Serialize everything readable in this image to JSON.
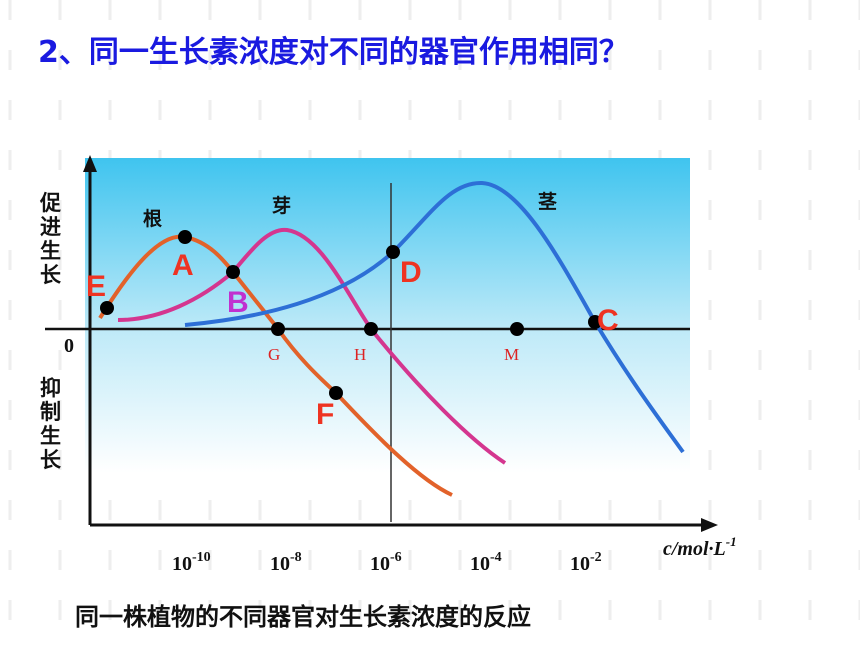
{
  "title": "2、同一生长素浓度对不同的器官作用相同？",
  "y_labels": {
    "promote": [
      "促",
      "进",
      "生",
      "长"
    ],
    "inhibit": [
      "抑",
      "制",
      "生",
      "长"
    ],
    "zero": "0"
  },
  "curve_labels": {
    "root": "根",
    "bud": "芽",
    "stem": "茎"
  },
  "points": {
    "E": "E",
    "A": "A",
    "B": "B",
    "D": "D",
    "C": "C",
    "F": "F",
    "G": "G",
    "H": "H",
    "M": "M"
  },
  "x_ticks": [
    {
      "base": "10",
      "exp": "-10"
    },
    {
      "base": "10",
      "exp": "-8"
    },
    {
      "base": "10",
      "exp": "-6"
    },
    {
      "base": "10",
      "exp": "-4"
    },
    {
      "base": "10",
      "exp": "-2"
    }
  ],
  "x_unit": {
    "base": "c/mol·L",
    "exp": "-1"
  },
  "caption": "同一株植物的不同器官对生长素浓度的反应"
}
